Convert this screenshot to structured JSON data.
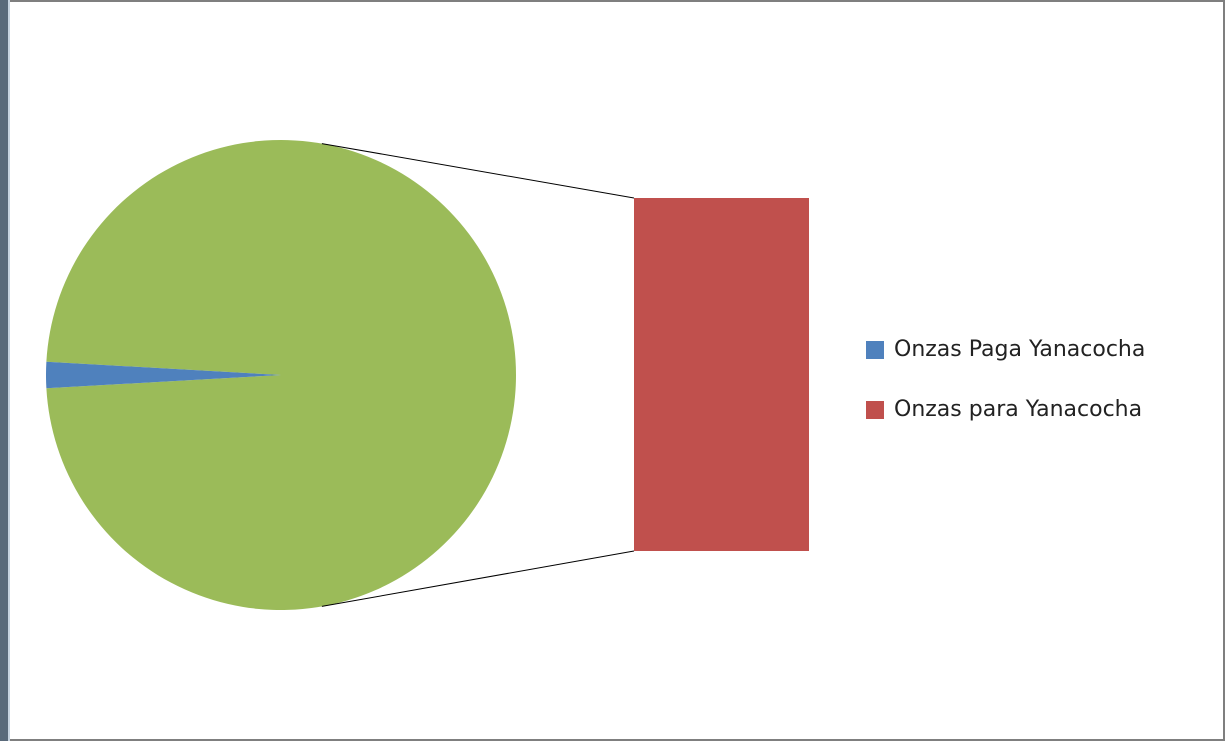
{
  "chart_data": {
    "type": "bar_of_pie",
    "categories": [
      "Onzas Paga Yanacocha",
      "Onzas para Yanacocha"
    ],
    "values": [
      1.8,
      98.2
    ],
    "colors": [
      "#4f81bd",
      "#c0504d"
    ],
    "other_color": "#9bbb59"
  }
}
